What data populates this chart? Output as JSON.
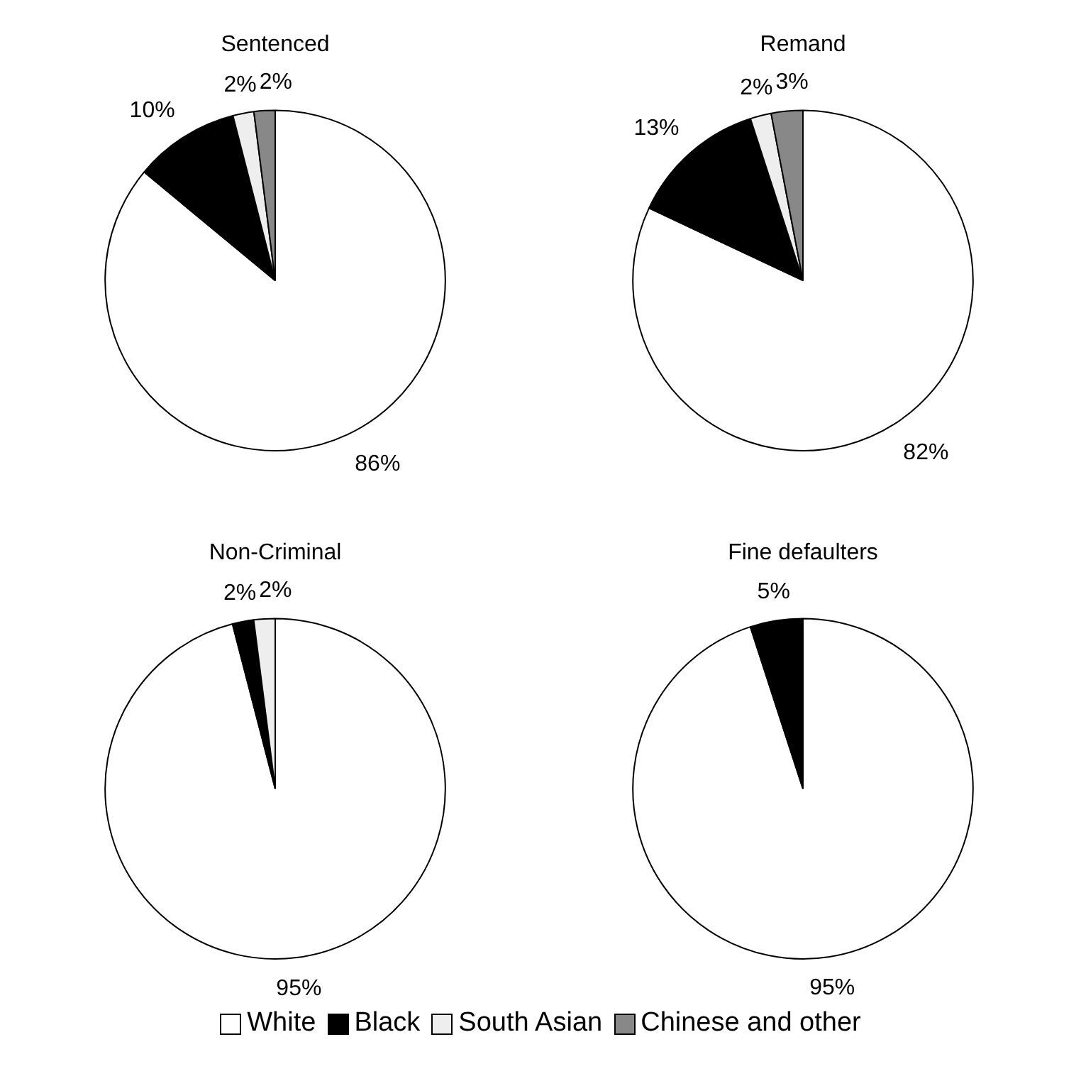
{
  "chart_data": [
    {
      "type": "pie",
      "title": "Sentenced",
      "categories": [
        "White",
        "Black",
        "South Asian",
        "Chinese and other"
      ],
      "values": [
        86,
        10,
        2,
        2
      ],
      "colors": [
        "#ffffff",
        "#000000",
        "#eeeeee",
        "#888888"
      ],
      "value_labels": [
        "86%",
        "10%",
        "2%",
        "2%"
      ],
      "legend": "bottom"
    },
    {
      "type": "pie",
      "title": "Remand",
      "categories": [
        null,
        null,
        null,
        null
      ],
      "values": [
        82,
        13,
        2,
        3
      ],
      "colors": [
        "#ffffff",
        "#000000",
        "#eeeeee",
        "#888888"
      ],
      "value_labels": [
        "82%",
        "13%",
        "2%",
        "3%"
      ]
    },
    {
      "type": "pie",
      "title": "Non-Criminal",
      "categories": [
        null,
        null,
        null,
        null
      ],
      "values": [
        95,
        2,
        2,
        null
      ],
      "colors": [
        "#ffffff",
        "#000000",
        "#eeeeee",
        "#888888"
      ],
      "value_labels": [
        "95%",
        "2%",
        "2%",
        null
      ]
    },
    {
      "type": "pie",
      "title": "Fine defaulters",
      "categories": [
        null,
        null,
        null,
        null
      ],
      "values": [
        95,
        5,
        null,
        null
      ],
      "colors": [
        "#ffffff",
        "#000000",
        "#eeeeee",
        "#888888"
      ],
      "value_labels": [
        "95%",
        "5%",
        null,
        null
      ]
    }
  ]
}
